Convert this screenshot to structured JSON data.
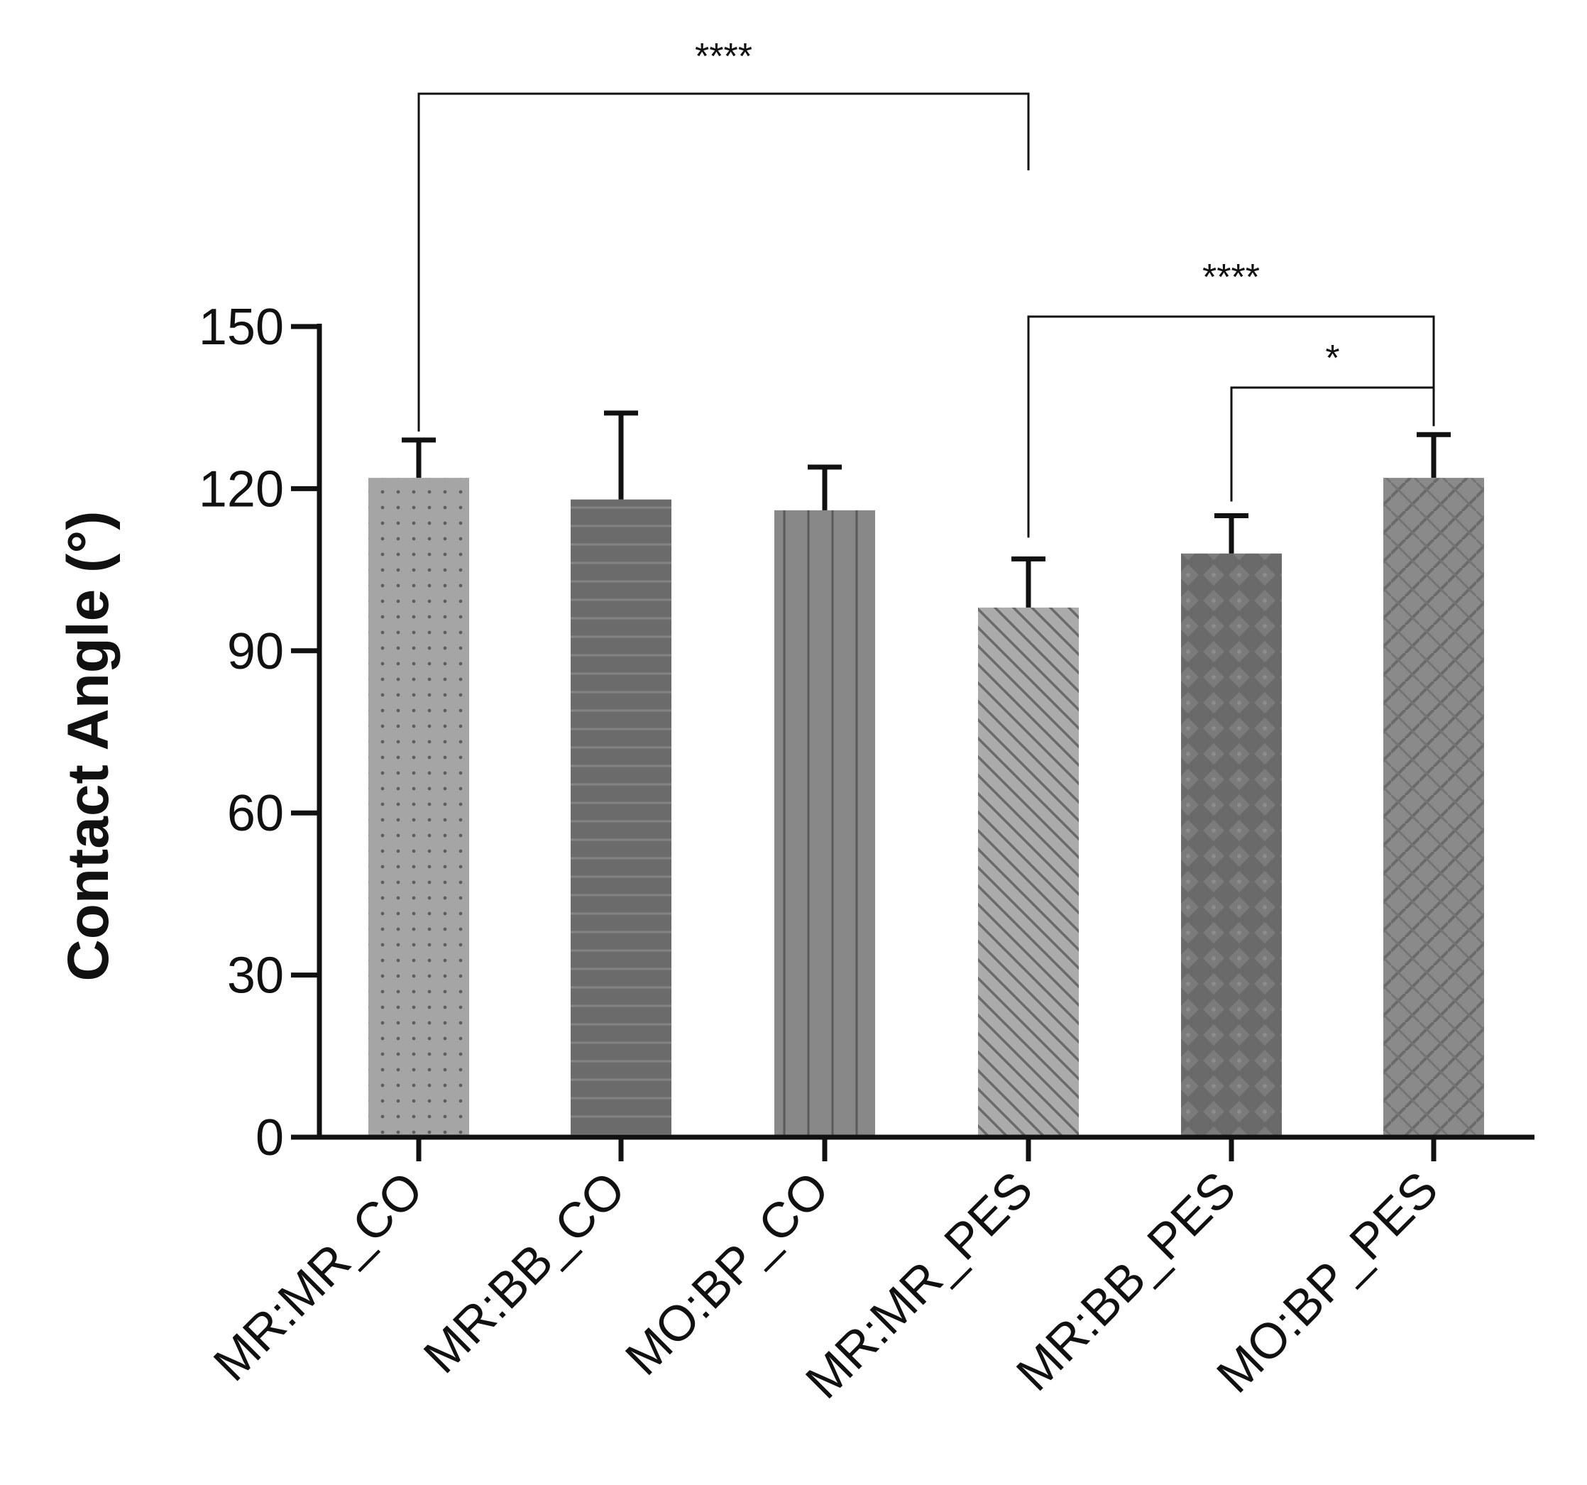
{
  "chart_data": {
    "type": "bar",
    "title": "",
    "xlabel": "",
    "ylabel": "Contact Angle (°)",
    "ylim": [
      0,
      150
    ],
    "yticks": [
      0,
      30,
      60,
      90,
      120,
      150
    ],
    "categories": [
      "MR:MR_CO",
      "MR:BB_CO",
      "MO:BP_CO",
      "MR:MR_PES",
      "MR:BB_PES",
      "MO:BP_PES"
    ],
    "values": [
      122,
      118,
      116,
      98,
      108,
      122
    ],
    "errors": [
      7,
      16,
      8,
      9,
      7,
      8
    ],
    "bar_patterns": [
      "dots",
      "horizontal-lines",
      "vertical-lines",
      "diagonal-lines",
      "diamond-grid",
      "basket-weave"
    ],
    "bar_colors": [
      "#a5a5a5",
      "#6b6b6b",
      "#868686",
      "#a9a9a9",
      "#696969",
      "#8a8a8a"
    ],
    "significance": [
      {
        "from": 0,
        "to": 3,
        "label": "****"
      },
      {
        "from": 3,
        "to": 5,
        "label": "****"
      },
      {
        "from": 4,
        "to": 5,
        "label": "*"
      }
    ]
  }
}
